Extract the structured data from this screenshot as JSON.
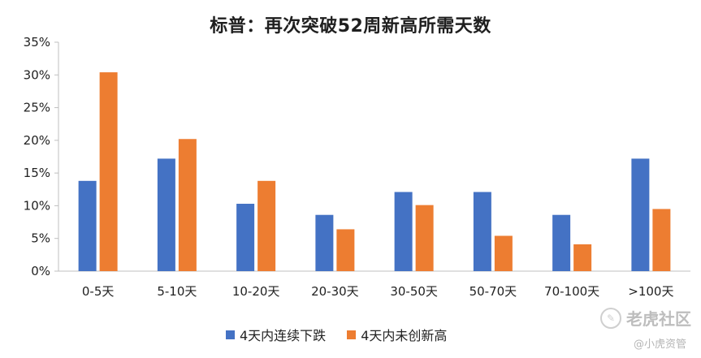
{
  "chart_data": {
    "type": "bar",
    "title": "标普：再次突破52周新高所需天数",
    "categories": [
      "0-5天",
      "5-10天",
      "10-20天",
      "20-30天",
      "30-50天",
      "50-70天",
      "70-100天",
      ">100天"
    ],
    "series": [
      {
        "name": "4天内连续下跌",
        "color": "#4472C4",
        "values": [
          13.8,
          17.2,
          10.3,
          8.6,
          12.1,
          12.1,
          8.6,
          17.2
        ]
      },
      {
        "name": "4天内未创新高",
        "color": "#ED7D31",
        "values": [
          30.4,
          20.2,
          13.8,
          6.4,
          10.1,
          5.4,
          4.1,
          9.5
        ]
      }
    ],
    "yticks": [
      "0%",
      "5%",
      "10%",
      "15%",
      "20%",
      "25%",
      "30%",
      "35%"
    ],
    "ylim": [
      0,
      35
    ],
    "grid": false,
    "legend": "bottom"
  },
  "watermark": {
    "brand": "老虎社区",
    "sub": "@小虎资管"
  }
}
